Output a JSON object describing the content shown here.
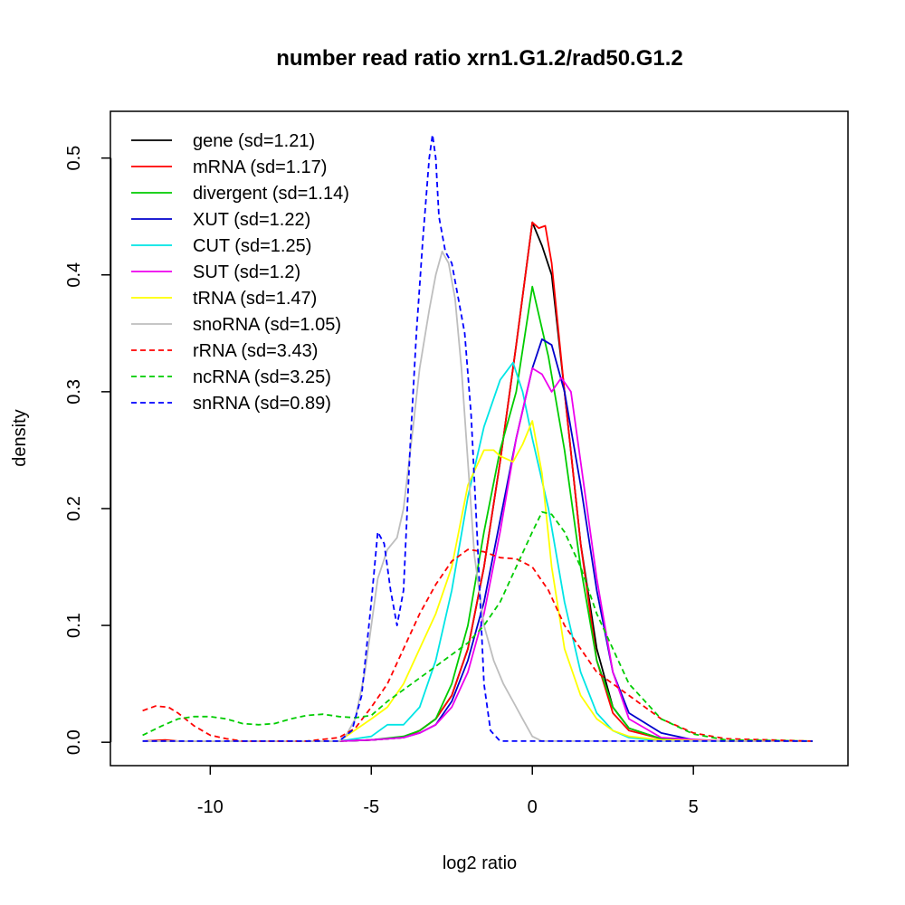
{
  "chart_data": {
    "type": "line",
    "title": "number read ratio xrn1.G1.2/rad50.G1.2",
    "xlabel": "log2 ratio",
    "ylabel": "density",
    "xlim": [
      -13.1,
      9.8
    ],
    "ylim": [
      -0.02,
      0.54
    ],
    "xticks": [
      -10,
      -5,
      0,
      5
    ],
    "xtick_labels": [
      "-10",
      "-5",
      "0",
      "5"
    ],
    "yticks": [
      0.0,
      0.1,
      0.2,
      0.3,
      0.4,
      0.5
    ],
    "ytick_labels": [
      "0.0",
      "0.1",
      "0.2",
      "0.3",
      "0.4",
      "0.5"
    ],
    "legend_position": "top-left",
    "series": [
      {
        "name": "gene (sd=1.21)",
        "color": "#000000",
        "dash": "solid",
        "x": [
          -12.1,
          -6,
          -5,
          -4,
          -3.5,
          -3,
          -2.5,
          -2,
          -1.5,
          -1,
          -0.5,
          0,
          0.3,
          0.6,
          1,
          1.5,
          2,
          2.5,
          3,
          4,
          6,
          8.7
        ],
        "y": [
          0.001,
          0.001,
          0.002,
          0.004,
          0.01,
          0.02,
          0.04,
          0.08,
          0.15,
          0.24,
          0.34,
          0.445,
          0.425,
          0.4,
          0.3,
          0.17,
          0.08,
          0.03,
          0.012,
          0.003,
          0.001,
          0.001
        ]
      },
      {
        "name": "mRNA (sd=1.17)",
        "color": "#ff0000",
        "dash": "solid",
        "x": [
          -12.1,
          -11.4,
          -11,
          -6,
          -5,
          -4,
          -3.5,
          -3,
          -2.5,
          -2,
          -1.5,
          -1,
          -0.5,
          0,
          0.2,
          0.4,
          0.6,
          1,
          1.5,
          2,
          2.5,
          3,
          4,
          6,
          8.7
        ],
        "y": [
          0.001,
          0.002,
          0.001,
          0.001,
          0.002,
          0.004,
          0.01,
          0.02,
          0.04,
          0.08,
          0.15,
          0.24,
          0.34,
          0.445,
          0.44,
          0.442,
          0.41,
          0.3,
          0.17,
          0.07,
          0.025,
          0.01,
          0.003,
          0.001,
          0.001
        ]
      },
      {
        "name": "divergent (sd=1.14)",
        "color": "#00cc00",
        "dash": "solid",
        "x": [
          -12.1,
          -6,
          -5,
          -4,
          -3.5,
          -3,
          -2.5,
          -2,
          -1.5,
          -1,
          -0.5,
          0,
          0.5,
          1,
          1.5,
          2,
          2.5,
          3,
          4,
          6,
          8.7
        ],
        "y": [
          0.001,
          0.001,
          0.002,
          0.005,
          0.01,
          0.02,
          0.05,
          0.1,
          0.18,
          0.25,
          0.3,
          0.39,
          0.33,
          0.25,
          0.15,
          0.07,
          0.03,
          0.012,
          0.003,
          0.001,
          0.001
        ]
      },
      {
        "name": "XUT (sd=1.22)",
        "color": "#0000cc",
        "dash": "solid",
        "x": [
          -12.1,
          -6,
          -5,
          -4,
          -3.5,
          -3,
          -2.5,
          -2,
          -1.5,
          -1,
          -0.5,
          0,
          0.3,
          0.6,
          1,
          1.5,
          2,
          2.5,
          3,
          4,
          5,
          6,
          8.7
        ],
        "y": [
          0.001,
          0.001,
          0.002,
          0.004,
          0.008,
          0.015,
          0.035,
          0.07,
          0.12,
          0.19,
          0.26,
          0.32,
          0.345,
          0.34,
          0.3,
          0.22,
          0.13,
          0.06,
          0.025,
          0.008,
          0.002,
          0.001,
          0.001
        ]
      },
      {
        "name": "CUT (sd=1.25)",
        "color": "#00e5e5",
        "dash": "solid",
        "x": [
          -12.1,
          -6,
          -5,
          -4.5,
          -4,
          -3.5,
          -3,
          -2.5,
          -2,
          -1.5,
          -1,
          -0.6,
          -0.3,
          0,
          0.5,
          1,
          1.5,
          2,
          2.5,
          3,
          4,
          6,
          8.7
        ],
        "y": [
          0.001,
          0.001,
          0.005,
          0.015,
          0.015,
          0.03,
          0.07,
          0.13,
          0.21,
          0.27,
          0.31,
          0.325,
          0.3,
          0.26,
          0.2,
          0.12,
          0.06,
          0.025,
          0.01,
          0.004,
          0.001,
          0.001,
          0.001
        ]
      },
      {
        "name": "SUT (sd=1.2)",
        "color": "#ee00ee",
        "dash": "solid",
        "x": [
          -12.1,
          -6,
          -5,
          -4,
          -3.5,
          -3,
          -2.5,
          -2,
          -1.5,
          -1,
          -0.5,
          0,
          0.3,
          0.6,
          0.9,
          1.2,
          1.5,
          2,
          2.5,
          3,
          4,
          6,
          8.7
        ],
        "y": [
          0.001,
          0.001,
          0.002,
          0.004,
          0.008,
          0.015,
          0.03,
          0.06,
          0.11,
          0.18,
          0.26,
          0.32,
          0.315,
          0.3,
          0.312,
          0.3,
          0.24,
          0.14,
          0.06,
          0.02,
          0.004,
          0.001,
          0.001
        ]
      },
      {
        "name": "tRNA (sd=1.47)",
        "color": "#ffff00",
        "dash": "solid",
        "x": [
          -12.1,
          -6,
          -5,
          -4.5,
          -4,
          -3.5,
          -3,
          -2.5,
          -2,
          -1.5,
          -1.2,
          -1,
          -0.6,
          -0.3,
          0,
          0.3,
          0.6,
          1,
          1.5,
          2,
          2.5,
          3,
          4,
          6,
          8.7
        ],
        "y": [
          0.001,
          0.001,
          0.02,
          0.03,
          0.05,
          0.08,
          0.11,
          0.15,
          0.22,
          0.25,
          0.25,
          0.245,
          0.24,
          0.255,
          0.275,
          0.23,
          0.15,
          0.08,
          0.04,
          0.02,
          0.01,
          0.005,
          0.002,
          0.001,
          0.001
        ]
      },
      {
        "name": "snoRNA (sd=1.05)",
        "color": "#bebebe",
        "dash": "solid",
        "x": [
          -12.1,
          -6,
          -5.8,
          -5.5,
          -5.2,
          -5,
          -4.8,
          -4.5,
          -4.2,
          -4,
          -3.7,
          -3.5,
          -3.2,
          -3,
          -2.8,
          -2.6,
          -2.4,
          -2.2,
          -2,
          -1.8,
          -1.5,
          -1.2,
          -0.9,
          -0.6,
          -0.3,
          0,
          0.3,
          6,
          8.7
        ],
        "y": [
          0.001,
          0.001,
          0.005,
          0.02,
          0.06,
          0.1,
          0.14,
          0.165,
          0.175,
          0.2,
          0.27,
          0.32,
          0.37,
          0.4,
          0.42,
          0.41,
          0.38,
          0.32,
          0.24,
          0.16,
          0.1,
          0.07,
          0.05,
          0.035,
          0.02,
          0.005,
          0.001,
          0.001,
          0.001
        ]
      },
      {
        "name": "rRNA (sd=3.43)",
        "color": "#ff0000",
        "dash": "dashed",
        "x": [
          -12.1,
          -11.7,
          -11.3,
          -11,
          -10.5,
          -10,
          -9.5,
          -9,
          -8,
          -7,
          -6,
          -5.5,
          -5,
          -4.5,
          -4,
          -3.5,
          -3,
          -2.5,
          -2,
          -1.5,
          -1,
          -0.5,
          0,
          0.5,
          1,
          1.5,
          2,
          3,
          4,
          5,
          6,
          8.7
        ],
        "y": [
          0.027,
          0.031,
          0.03,
          0.025,
          0.014,
          0.006,
          0.003,
          0.001,
          0.001,
          0.001,
          0.004,
          0.012,
          0.03,
          0.05,
          0.08,
          0.11,
          0.135,
          0.155,
          0.165,
          0.163,
          0.158,
          0.157,
          0.15,
          0.13,
          0.1,
          0.08,
          0.06,
          0.04,
          0.02,
          0.008,
          0.003,
          0.001
        ]
      },
      {
        "name": "ncRNA (sd=3.25)",
        "color": "#00cc00",
        "dash": "dashed",
        "x": [
          -12.1,
          -11.5,
          -11,
          -10.5,
          -10,
          -9.5,
          -9,
          -8.5,
          -8,
          -7.5,
          -7,
          -6.5,
          -6,
          -5.5,
          -5,
          -4.5,
          -4,
          -3.5,
          -3,
          -2.5,
          -2,
          -1.5,
          -1,
          -0.5,
          0,
          0.3,
          0.6,
          1,
          1.5,
          2,
          3,
          4,
          5,
          6,
          8.7
        ],
        "y": [
          0.006,
          0.014,
          0.02,
          0.022,
          0.022,
          0.02,
          0.016,
          0.015,
          0.016,
          0.02,
          0.023,
          0.024,
          0.022,
          0.021,
          0.023,
          0.035,
          0.045,
          0.055,
          0.065,
          0.075,
          0.085,
          0.1,
          0.12,
          0.15,
          0.18,
          0.197,
          0.195,
          0.18,
          0.15,
          0.11,
          0.05,
          0.02,
          0.007,
          0.002,
          0.001
        ]
      },
      {
        "name": "snRNA (sd=0.89)",
        "color": "#0000ff",
        "dash": "dashed",
        "x": [
          -12.1,
          -6,
          -5.6,
          -5.3,
          -5,
          -4.8,
          -4.6,
          -4.4,
          -4.2,
          -4,
          -3.8,
          -3.6,
          -3.4,
          -3.2,
          -3.1,
          -3,
          -2.9,
          -2.7,
          -2.5,
          -2.3,
          -2.1,
          -1.9,
          -1.7,
          -1.5,
          -1.3,
          -1,
          -0.5,
          8.7
        ],
        "y": [
          0.001,
          0.001,
          0.01,
          0.04,
          0.12,
          0.18,
          0.17,
          0.13,
          0.1,
          0.13,
          0.25,
          0.35,
          0.43,
          0.5,
          0.52,
          0.5,
          0.45,
          0.42,
          0.41,
          0.38,
          0.35,
          0.28,
          0.17,
          0.05,
          0.01,
          0.001,
          0.001,
          0.001
        ]
      }
    ]
  }
}
